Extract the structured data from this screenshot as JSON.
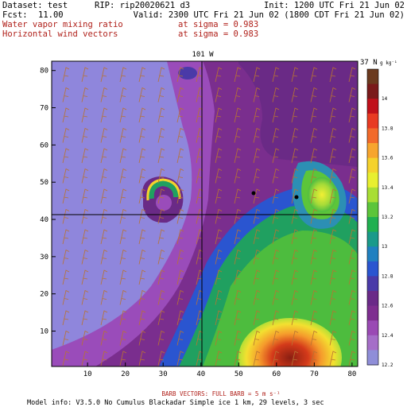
{
  "header": {
    "dataset": "Dataset: test",
    "rip": "RIP: rip20020621 d3",
    "init": "Init: 1200 UTC Fri 21 Jun 02",
    "fcst_label": "Fcst:",
    "fcst_value": "11.00",
    "valid": "Valid: 2300 UTC Fri 21 Jun 02 (1800 CDT Fri 21 Jun 02)",
    "field1_name": "Water vapor mixing ratio",
    "field1_level": "at sigma = 0.983",
    "field2_name": "Horizontal wind vectors",
    "field2_level": "at sigma = 0.983"
  },
  "map": {
    "top_label": "101 W",
    "right_label": "37 N",
    "x_ticks": [
      "10",
      "20",
      "30",
      "40",
      "50",
      "60",
      "70",
      "80"
    ],
    "y_ticks": [
      "10",
      "20",
      "30",
      "40",
      "50",
      "60",
      "70",
      "80"
    ]
  },
  "colorbar": {
    "unit": "g kg⁻¹",
    "labels": [
      "14",
      "13.8",
      "13.6",
      "13.4",
      "13.2",
      "13",
      "12.8",
      "12.6",
      "12.4",
      "12.2"
    ],
    "colors": [
      "#6b3a1e",
      "#7a1a1a",
      "#c0101a",
      "#e83a22",
      "#f26a2a",
      "#f7a52e",
      "#f5d22c",
      "#e8ef2f",
      "#a8de34",
      "#5cc53a",
      "#20b050",
      "#1a9a8a",
      "#2080c0",
      "#2a55d0",
      "#4a3aa8",
      "#6a2a88",
      "#7e2e90",
      "#9a4ab4",
      "#a56ec8",
      "#8f8ed8"
    ]
  },
  "footer": {
    "barb_note": "BARB VECTORS:  FULL BARB = 5 m s⁻¹",
    "model_info": "Model info: V3.5.0 No Cumulus Blackadar  Simple ice   1 km,  29 levels,     3 sec"
  }
}
